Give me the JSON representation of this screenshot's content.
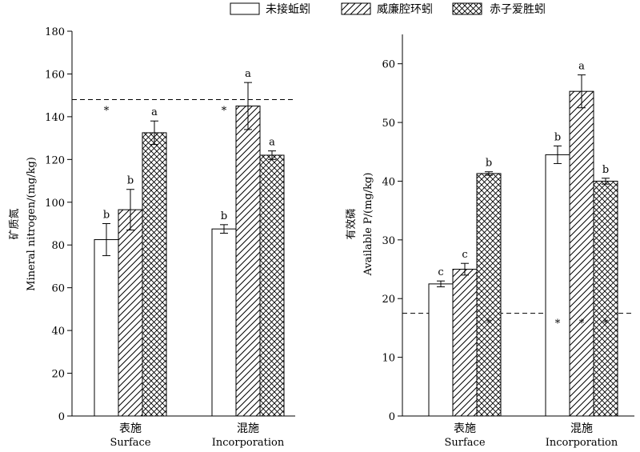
{
  "legend": {
    "items": [
      {
        "label": "未接蚯蚓",
        "pattern": "none"
      },
      {
        "label": "威廉腔环蚓",
        "pattern": "diagonal"
      },
      {
        "label": "赤子爱胜蚓",
        "pattern": "crosshatch"
      }
    ]
  },
  "chart_data": [
    {
      "type": "bar",
      "ylabel_cn": "矿质氮",
      "ylabel": "Mineral nitrogen/(mg/kg)",
      "ylim": [
        0,
        180
      ],
      "yticks": [
        0,
        20,
        40,
        60,
        80,
        100,
        120,
        140,
        160,
        180
      ],
      "categories": [
        {
          "cn": "表施",
          "en": "Surface"
        },
        {
          "cn": "混施",
          "en": "Incorporation"
        }
      ],
      "series": [
        {
          "values": [
            82.5,
            87.5
          ],
          "errors": [
            7.5,
            2.0
          ],
          "letters": [
            "b",
            "b"
          ]
        },
        {
          "values": [
            96.5,
            145.0
          ],
          "errors": [
            9.5,
            11.0
          ],
          "letters": [
            "b",
            "a"
          ]
        },
        {
          "values": [
            132.5,
            122.0
          ],
          "errors": [
            5.5,
            2.0
          ],
          "letters": [
            "a",
            "a"
          ]
        }
      ],
      "reference_line": 148,
      "stars": [
        {
          "category": 0,
          "series": 0,
          "y": 143.5,
          "label": "*"
        },
        {
          "category": 1,
          "series": 0,
          "y": 143.5,
          "label": "*"
        }
      ],
      "grid": false
    },
    {
      "type": "bar",
      "ylabel_cn": "有效磷",
      "ylabel": "Available P/(mg/kg)",
      "ylim": [
        0,
        65
      ],
      "yticks": [
        0,
        10,
        20,
        30,
        40,
        50,
        60
      ],
      "categories": [
        {
          "cn": "表施",
          "en": "Surface"
        },
        {
          "cn": "混施",
          "en": "Incorporation"
        }
      ],
      "series": [
        {
          "values": [
            22.5,
            44.5
          ],
          "errors": [
            0.5,
            1.5
          ],
          "letters": [
            "c",
            "b"
          ]
        },
        {
          "values": [
            25.0,
            55.3
          ],
          "errors": [
            1.0,
            2.8
          ],
          "letters": [
            "c",
            "a"
          ]
        },
        {
          "values": [
            41.3,
            40.0
          ],
          "errors": [
            0.3,
            0.5
          ],
          "letters": [
            "b",
            "b"
          ]
        }
      ],
      "reference_line": 17.5,
      "stars": [
        {
          "category": 0,
          "series": 2,
          "y": 16.0,
          "label": "*"
        },
        {
          "category": 1,
          "series": 0,
          "y": 16.0,
          "label": "*"
        },
        {
          "category": 1,
          "series": 1,
          "y": 16.0,
          "label": "*"
        },
        {
          "category": 1,
          "series": 2,
          "y": 16.0,
          "label": "*"
        }
      ],
      "grid": false
    }
  ]
}
